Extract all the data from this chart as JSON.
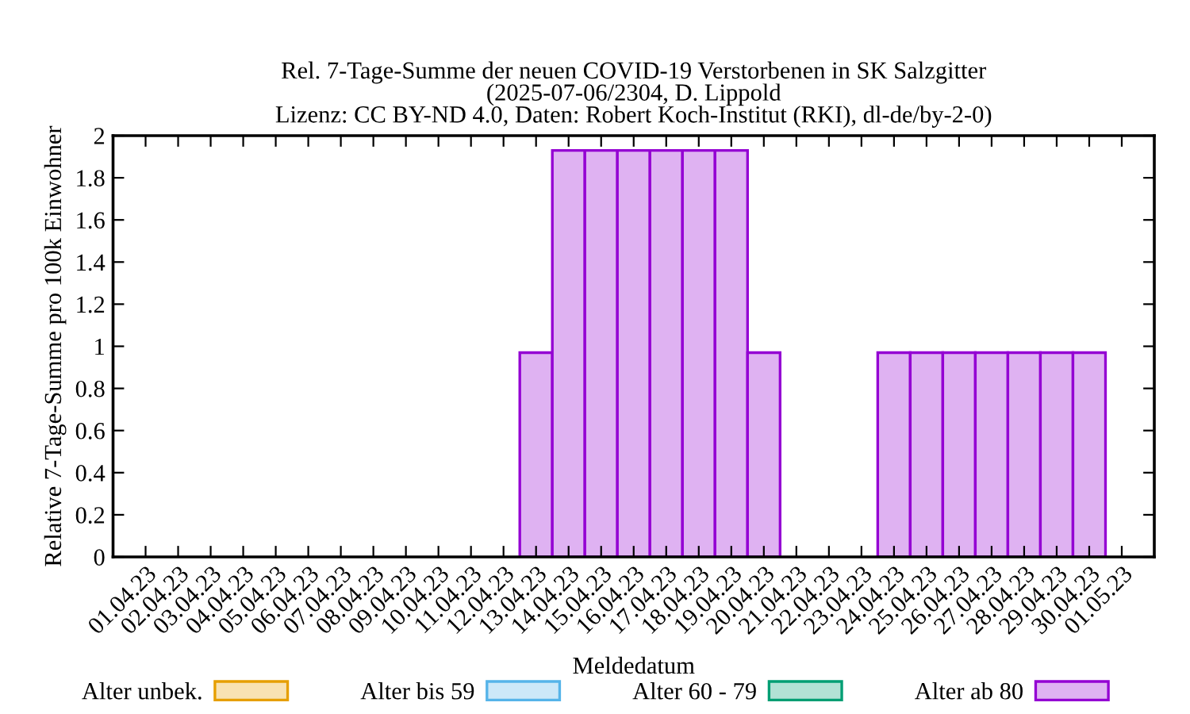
{
  "chart_data": {
    "type": "bar",
    "title": "Rel. 7-Tage-Summe der neuen COVID-19 Verstorbenen in SK Salzgitter\n(2025-07-06/2304, D. Lippold\nLizenz: CC BY-ND 4.0, Daten: Robert Koch-Institut (RKI), dl-de/by-2-0)",
    "xlabel": "Meldedatum",
    "ylabel": "Relative 7-Tage-Summe pro 100k Einwohner",
    "categories": [
      "01.04.23",
      "02.04.23",
      "03.04.23",
      "04.04.23",
      "05.04.23",
      "06.04.23",
      "07.04.23",
      "08.04.23",
      "09.04.23",
      "10.04.23",
      "11.04.23",
      "12.04.23",
      "13.04.23",
      "14.04.23",
      "15.04.23",
      "16.04.23",
      "17.04.23",
      "18.04.23",
      "19.04.23",
      "20.04.23",
      "21.04.23",
      "22.04.23",
      "23.04.23",
      "24.04.23",
      "25.04.23",
      "26.04.23",
      "27.04.23",
      "28.04.23",
      "29.04.23",
      "30.04.23",
      "01.05.23"
    ],
    "series": [
      {
        "name": "Alter unbek.",
        "color": "#e69f00",
        "values": [
          0,
          0,
          0,
          0,
          0,
          0,
          0,
          0,
          0,
          0,
          0,
          0,
          0,
          0,
          0,
          0,
          0,
          0,
          0,
          0,
          0,
          0,
          0,
          0,
          0,
          0,
          0,
          0,
          0,
          0,
          0
        ]
      },
      {
        "name": "Alter bis 59",
        "color": "#56b4e9",
        "values": [
          0,
          0,
          0,
          0,
          0,
          0,
          0,
          0,
          0,
          0,
          0,
          0,
          0,
          0,
          0,
          0,
          0,
          0,
          0,
          0,
          0,
          0,
          0,
          0,
          0,
          0,
          0,
          0,
          0,
          0,
          0
        ]
      },
      {
        "name": "Alter 60 - 79",
        "color": "#009e73",
        "values": [
          0,
          0,
          0,
          0,
          0,
          0,
          0,
          0,
          0,
          0,
          0,
          0,
          0,
          0,
          0,
          0,
          0,
          0,
          0,
          0,
          0,
          0,
          0,
          0,
          0,
          0,
          0,
          0,
          0,
          0,
          0
        ]
      },
      {
        "name": "Alter ab 80",
        "color": "#9400d3",
        "values": [
          0,
          0,
          0,
          0,
          0,
          0,
          0,
          0,
          0,
          0,
          0,
          0,
          0.97,
          1.93,
          1.93,
          1.93,
          1.93,
          1.93,
          1.93,
          0.97,
          0,
          0,
          0,
          0.97,
          0.97,
          0.97,
          0.97,
          0.97,
          0.97,
          0.97,
          0
        ]
      }
    ],
    "ylim": [
      0,
      2
    ],
    "yticks": [
      0,
      0.2,
      0.4,
      0.6,
      0.8,
      1,
      1.2,
      1.4,
      1.6,
      1.8,
      2
    ],
    "grid": false,
    "legend": "bottom"
  }
}
